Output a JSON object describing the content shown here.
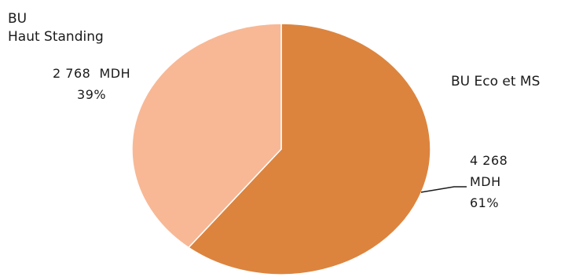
{
  "chart_data": {
    "type": "pie",
    "title": "",
    "slices": [
      {
        "category_lines": [
          "BU Eco et MS"
        ],
        "value_lines": [
          "4 268",
          "MDH",
          "61%"
        ],
        "value": 4268,
        "unit": "MDH",
        "percent": 61,
        "color": "#dc843e"
      },
      {
        "category_lines": [
          "BU",
          "Haut Standing"
        ],
        "value_lines": [
          "2 768  MDH",
          "39%"
        ],
        "value": 2768,
        "unit": "MDH",
        "percent": 39,
        "color": "#f8b895"
      }
    ],
    "start_angle": "12 o'clock",
    "direction": "clockwise",
    "legend": "none"
  }
}
